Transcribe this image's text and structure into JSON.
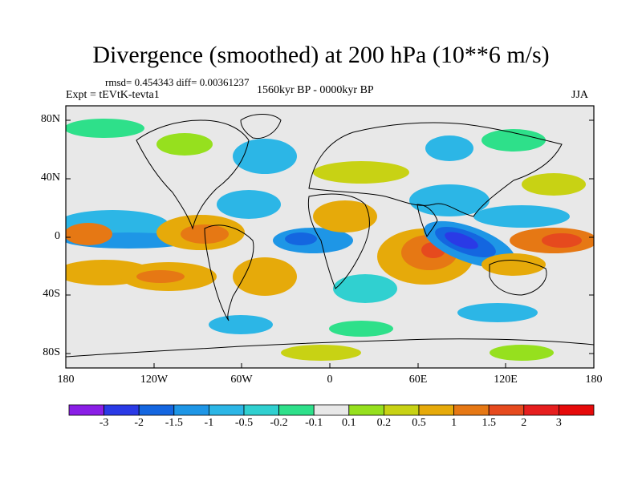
{
  "title": "Divergence (smoothed) at 200 hPa (10**6 m/s)",
  "stats": "rmsd= 0.454343 diff= 0.00361237",
  "experiment": "Expt = tEVtK-tevta1",
  "period": "1560kyr BP - 0000kyr BP",
  "season": "JJA",
  "lat_ticks": [
    "80N",
    "40N",
    "0",
    "40S",
    "80S"
  ],
  "lon_ticks": [
    "180",
    "120W",
    "60W",
    "0",
    "60E",
    "120E",
    "180"
  ],
  "colorbar": {
    "labels": [
      "-3",
      "-2",
      "-1.5",
      "-1",
      "-0.5",
      "-0.2",
      "-0.1",
      "0.1",
      "0.2",
      "0.5",
      "1",
      "1.5",
      "2",
      "3"
    ],
    "colors": [
      "#8a1ee6",
      "#2a3ae6",
      "#1466e0",
      "#1e96e6",
      "#2cb6e6",
      "#30d0d0",
      "#2ee08a",
      "#e8e8e8",
      "#96e01e",
      "#c8d214",
      "#e6aa0a",
      "#e67814",
      "#e64a1e",
      "#e61e1e",
      "#e60a0a"
    ]
  },
  "colors": {
    "land_outline": "#000000",
    "background": "#e8e8e8"
  }
}
